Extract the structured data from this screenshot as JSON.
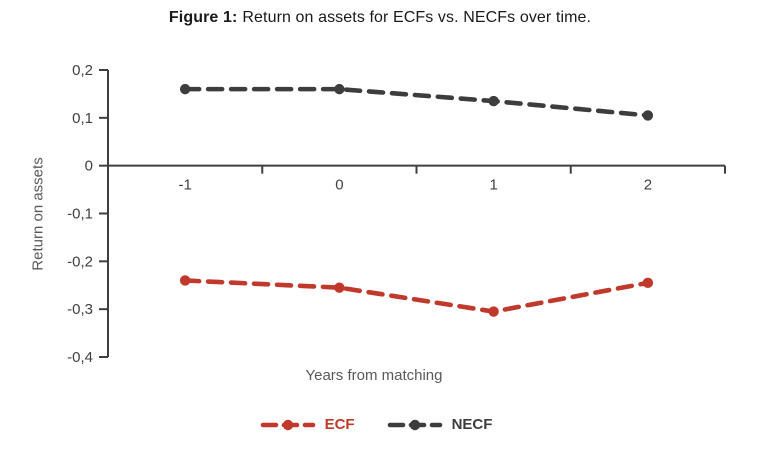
{
  "figure": {
    "title_prefix": "Figure 1:",
    "title_rest": "Return on assets for ECFs vs. NECFs over time."
  },
  "chart_data": {
    "type": "line",
    "title": "Figure 1: Return on assets for ECFs vs. NECFs over time.",
    "x": [
      -1,
      0,
      1,
      2
    ],
    "xtick_labels": [
      "-1",
      "0",
      "1",
      "2"
    ],
    "xlabel": "Years from matching",
    "ylabel": "Return on assets",
    "ylim": [
      -0.4,
      0.2
    ],
    "ytick_step": 0.1,
    "ytick_labels": [
      "0,2",
      "0,1",
      "0",
      "-0,1",
      "-0,2",
      "-0,3",
      "-0,4"
    ],
    "grid": false,
    "legend_position": "bottom",
    "line_style": "dashed",
    "marker": "circle",
    "series": [
      {
        "name": "ECF",
        "color": "#c0392b",
        "values": [
          -0.24,
          -0.255,
          -0.305,
          -0.245
        ]
      },
      {
        "name": "NECF",
        "color": "#3d3d3d",
        "values": [
          0.16,
          0.16,
          0.135,
          0.105
        ]
      }
    ]
  }
}
